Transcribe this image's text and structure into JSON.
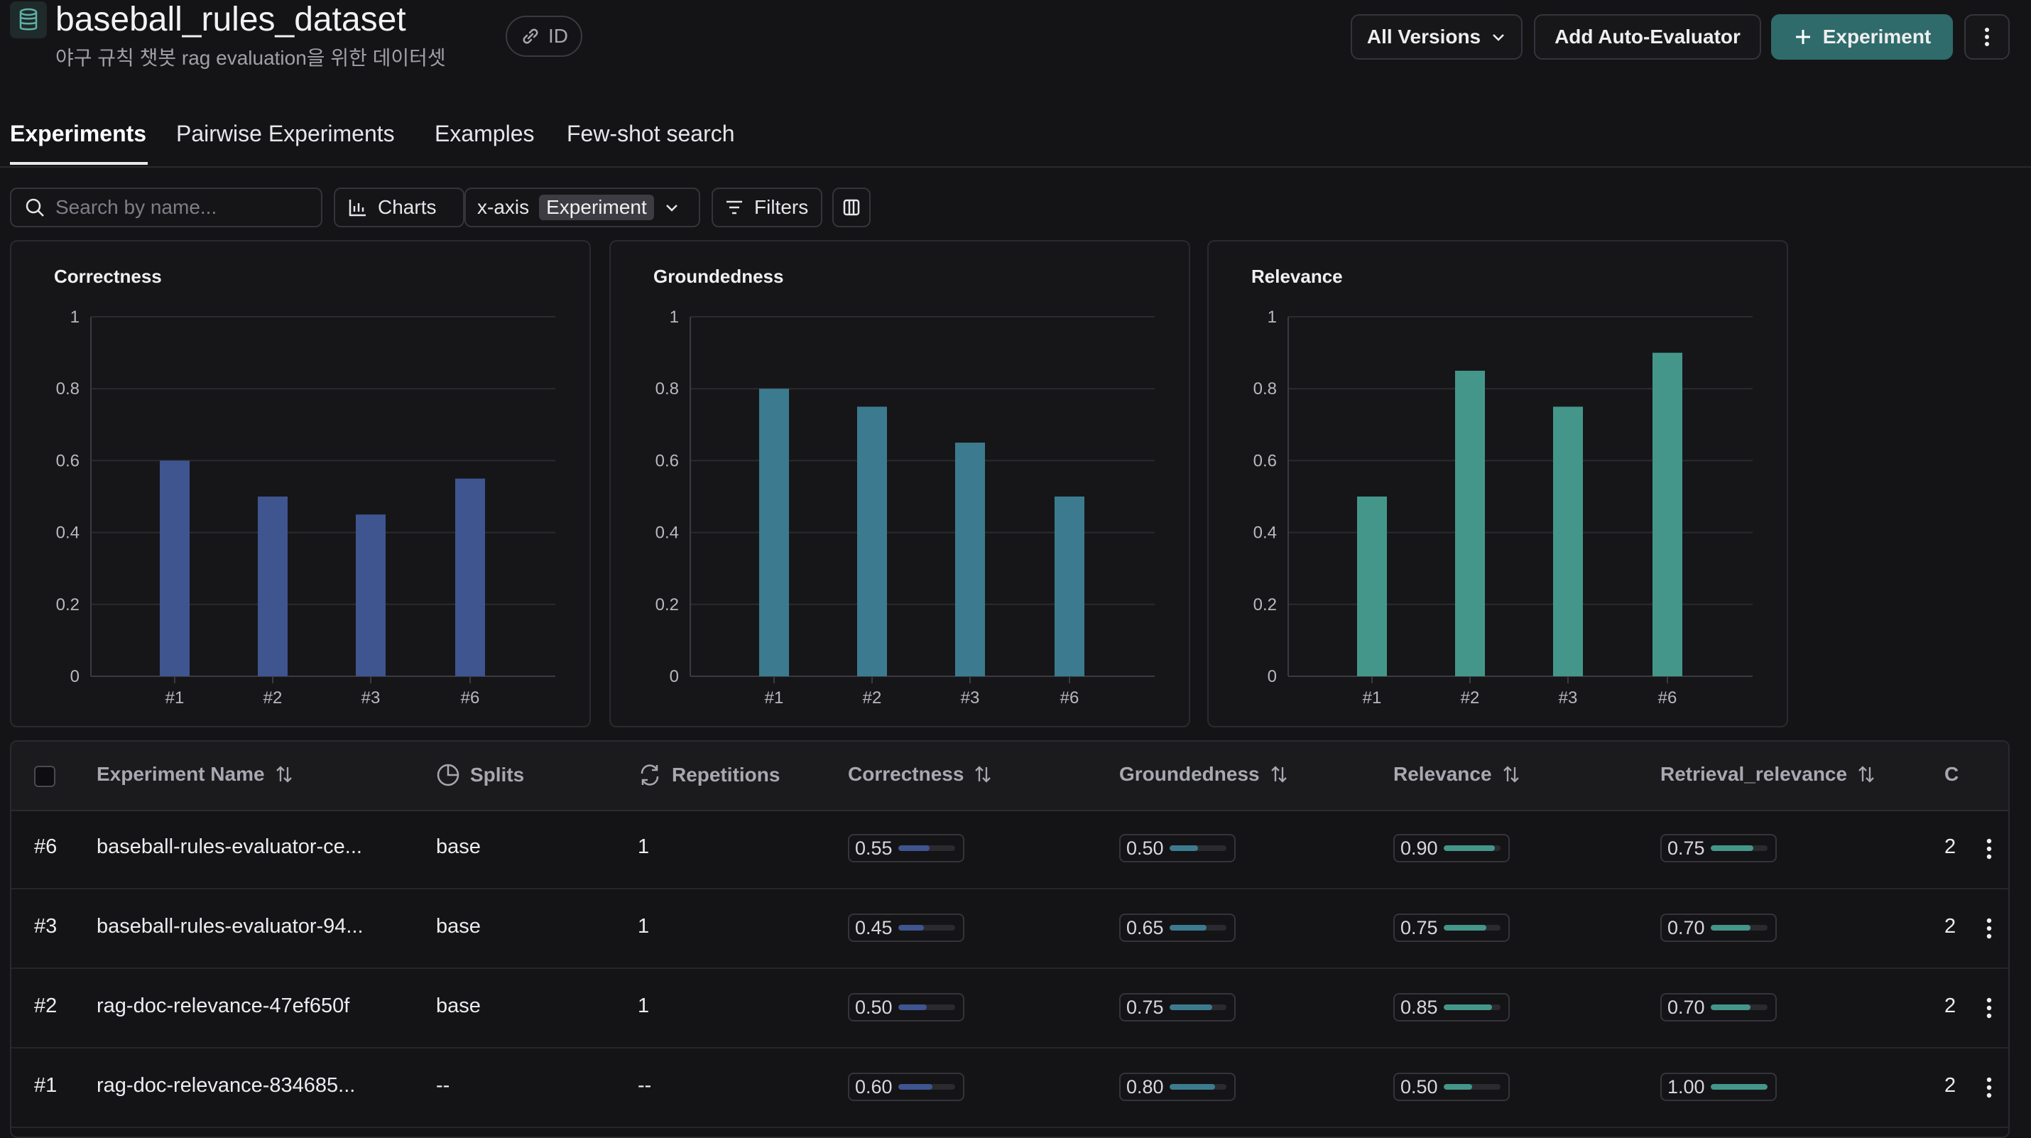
{
  "header": {
    "title": "baseball_rules_dataset",
    "subtitle": "야구 규칙 챗봇 rag evaluation을 위한 데이터셋",
    "id_label": "ID",
    "versions_label": "All Versions",
    "auto_evaluator_label": "Add Auto-Evaluator",
    "experiment_label": "Experiment"
  },
  "tabs": [
    {
      "label": "Experiments",
      "active": true
    },
    {
      "label": "Pairwise Experiments",
      "active": false
    },
    {
      "label": "Examples",
      "active": false
    },
    {
      "label": "Few-shot search",
      "active": false
    }
  ],
  "toolbar": {
    "search_placeholder": "Search by name...",
    "charts_label": "Charts",
    "xaxis_label": "x-axis",
    "xaxis_value": "Experiment",
    "filters_label": "Filters"
  },
  "colors": {
    "correctness": "#3f5590",
    "groundedness": "#3c7b8f",
    "relevance": "#44968a",
    "accent": "#2f6b6a"
  },
  "chart_data": [
    {
      "type": "bar",
      "title": "Correctness",
      "categories": [
        "#1",
        "#2",
        "#3",
        "#6"
      ],
      "values": [
        0.6,
        0.5,
        0.45,
        0.55
      ],
      "ylim": [
        0,
        1
      ],
      "yticks": [
        "0",
        "0.2",
        "0.4",
        "0.6",
        "0.8",
        "1"
      ],
      "color": "#3f5590",
      "grid": true
    },
    {
      "type": "bar",
      "title": "Groundedness",
      "categories": [
        "#1",
        "#2",
        "#3",
        "#6"
      ],
      "values": [
        0.8,
        0.75,
        0.65,
        0.5
      ],
      "ylim": [
        0,
        1
      ],
      "yticks": [
        "0",
        "0.2",
        "0.4",
        "0.6",
        "0.8",
        "1"
      ],
      "color": "#3c7b8f",
      "grid": true
    },
    {
      "type": "bar",
      "title": "Relevance",
      "categories": [
        "#1",
        "#2",
        "#3",
        "#6"
      ],
      "values": [
        0.5,
        0.85,
        0.75,
        0.9
      ],
      "ylim": [
        0,
        1
      ],
      "yticks": [
        "0",
        "0.2",
        "0.4",
        "0.6",
        "0.8",
        "1"
      ],
      "color": "#44968a",
      "grid": true
    }
  ],
  "table": {
    "columns": [
      "Experiment Name",
      "Splits",
      "Repetitions",
      "Correctness",
      "Groundedness",
      "Relevance",
      "Retrieval_relevance",
      "C"
    ],
    "rows": [
      {
        "id": "#6",
        "name": "baseball-rules-evaluator-ce...",
        "splits": "base",
        "repetitions": "1",
        "correctness": "0.55",
        "groundedness": "0.50",
        "relevance": "0.90",
        "retrieval": "0.75",
        "c": "2",
        "vals": [
          0.55,
          0.5,
          0.9,
          0.75
        ]
      },
      {
        "id": "#3",
        "name": "baseball-rules-evaluator-94...",
        "splits": "base",
        "repetitions": "1",
        "correctness": "0.45",
        "groundedness": "0.65",
        "relevance": "0.75",
        "retrieval": "0.70",
        "c": "2",
        "vals": [
          0.45,
          0.65,
          0.75,
          0.7
        ]
      },
      {
        "id": "#2",
        "name": "rag-doc-relevance-47ef650f",
        "splits": "base",
        "repetitions": "1",
        "correctness": "0.50",
        "groundedness": "0.75",
        "relevance": "0.85",
        "retrieval": "0.70",
        "c": "2",
        "vals": [
          0.5,
          0.75,
          0.85,
          0.7
        ]
      },
      {
        "id": "#1",
        "name": "rag-doc-relevance-834685...",
        "splits": "--",
        "repetitions": "--",
        "correctness": "0.60",
        "groundedness": "0.80",
        "relevance": "0.50",
        "retrieval": "1.00",
        "c": "2",
        "vals": [
          0.6,
          0.8,
          0.5,
          1.0
        ]
      }
    ]
  }
}
